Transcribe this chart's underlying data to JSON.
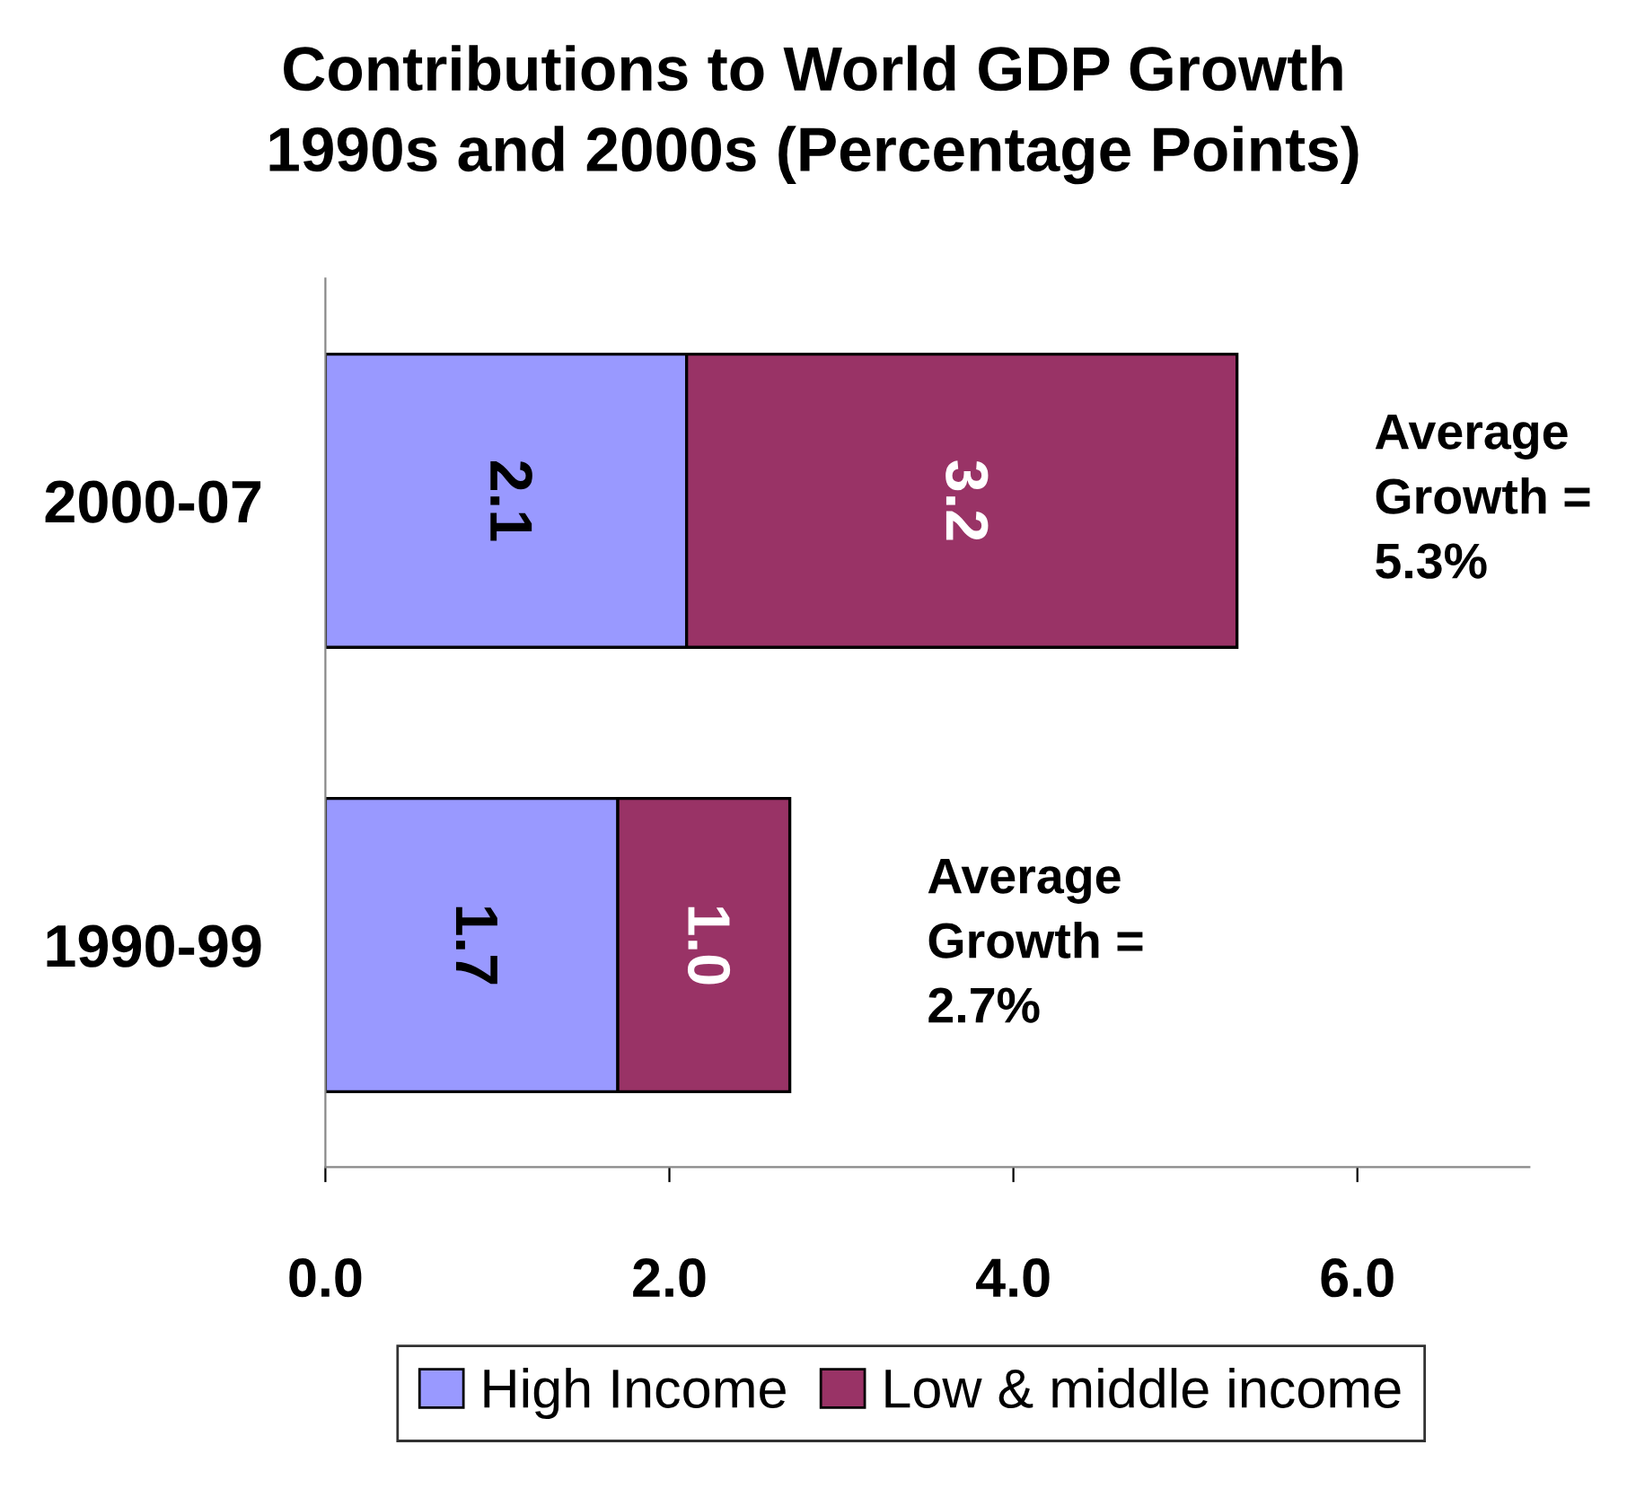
{
  "chart_data": {
    "type": "bar",
    "orientation": "horizontal",
    "stacked": true,
    "title": "Contributions to World GDP Growth\n1990s and 2000s (Percentage Points)",
    "categories": [
      "2000-07",
      "1990-99"
    ],
    "series": [
      {
        "name": "High Income",
        "color": "#9999ff",
        "values": [
          2.1,
          1.7
        ],
        "value_labels": [
          "2.1",
          "1.7"
        ]
      },
      {
        "name": "Low & middle income",
        "color": "#993366",
        "values": [
          3.2,
          1.0
        ],
        "value_labels": [
          "3.2",
          "1.0"
        ]
      }
    ],
    "xlim": [
      0,
      7
    ],
    "xticks": [
      {
        "value": 0,
        "label": "0.0"
      },
      {
        "value": 2,
        "label": "2.0"
      },
      {
        "value": 4,
        "label": "4.0"
      },
      {
        "value": 6,
        "label": "6.0"
      }
    ],
    "annotations": [
      {
        "text": "Average\nGrowth =\n5.3%",
        "x": 5.3,
        "y": "2000-07"
      },
      {
        "text": "Average\nGrowth =\n2.7%",
        "x": 2.7,
        "y": "1990-99"
      }
    ],
    "grid": false,
    "legend": "bottom"
  }
}
